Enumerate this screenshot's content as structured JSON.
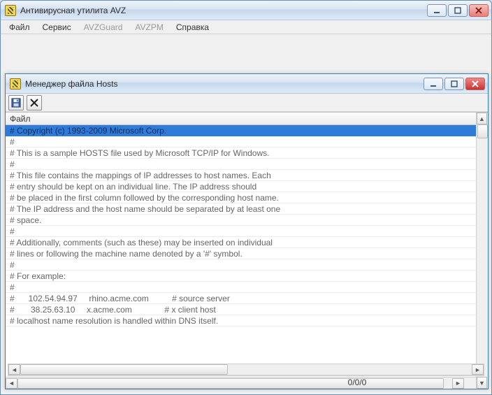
{
  "main": {
    "title": "Антивирусная утилита AVZ",
    "menu": [
      {
        "label": "Файл",
        "disabled": false
      },
      {
        "label": "Сервис",
        "disabled": false
      },
      {
        "label": "AVZGuard",
        "disabled": true
      },
      {
        "label": "AVZPM",
        "disabled": true
      },
      {
        "label": "Справка",
        "disabled": false
      }
    ],
    "status_counter": "0/0/0"
  },
  "child": {
    "title": "Менеджер файла Hosts",
    "column_header": "Файл",
    "lines": [
      "# Copyright (c) 1993-2009 Microsoft Corp.",
      "#",
      "# This is a sample HOSTS file used by Microsoft TCP/IP for Windows.",
      "#",
      "# This file contains the mappings of IP addresses to host names. Each",
      "# entry should be kept on an individual line. The IP address should",
      "# be placed in the first column followed by the corresponding host name.",
      "# The IP address and the host name should be separated by at least one",
      "# space.",
      "#",
      "# Additionally, comments (such as these) may be inserted on individual",
      "# lines or following the machine name denoted by a '#' symbol.",
      "#",
      "# For example:",
      "#",
      "#      102.54.94.97     rhino.acme.com          # source server",
      "#       38.25.63.10     x.acme.com              # x client host",
      "# localhost name resolution is handled within DNS itself."
    ],
    "selected_index": 0
  },
  "style": {
    "selected_bg": "#2f7bd9",
    "accent_border": "#3c7fb1"
  }
}
